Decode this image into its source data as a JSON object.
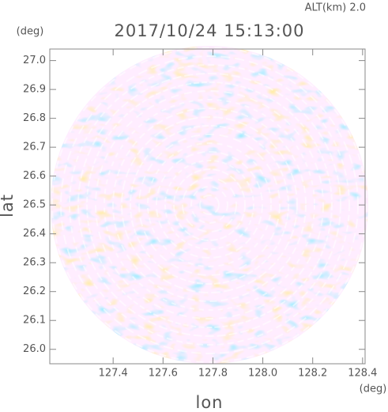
{
  "chart_data": {
    "type": "radar-field",
    "title": "2017/10/24 15:13:00",
    "subtitle": "ALT(km) 2.0",
    "x_label": "lon",
    "y_label": "lat",
    "x_unit": "(deg)",
    "y_unit": "(deg)",
    "xlim": [
      127.146,
      128.41
    ],
    "ylim": [
      25.95,
      27.04
    ],
    "xticks": [
      127.4,
      127.6,
      127.8,
      {
        "value": 128,
        "label": "128.0"
      },
      128.2,
      128.4
    ],
    "yticks": [
      {
        "value": 26,
        "label": "26.0"
      },
      26.1,
      26.2,
      26.3,
      26.4,
      26.5,
      26.6,
      26.7,
      26.8,
      26.9,
      {
        "value": 27,
        "label": "27.0"
      }
    ]
  }
}
